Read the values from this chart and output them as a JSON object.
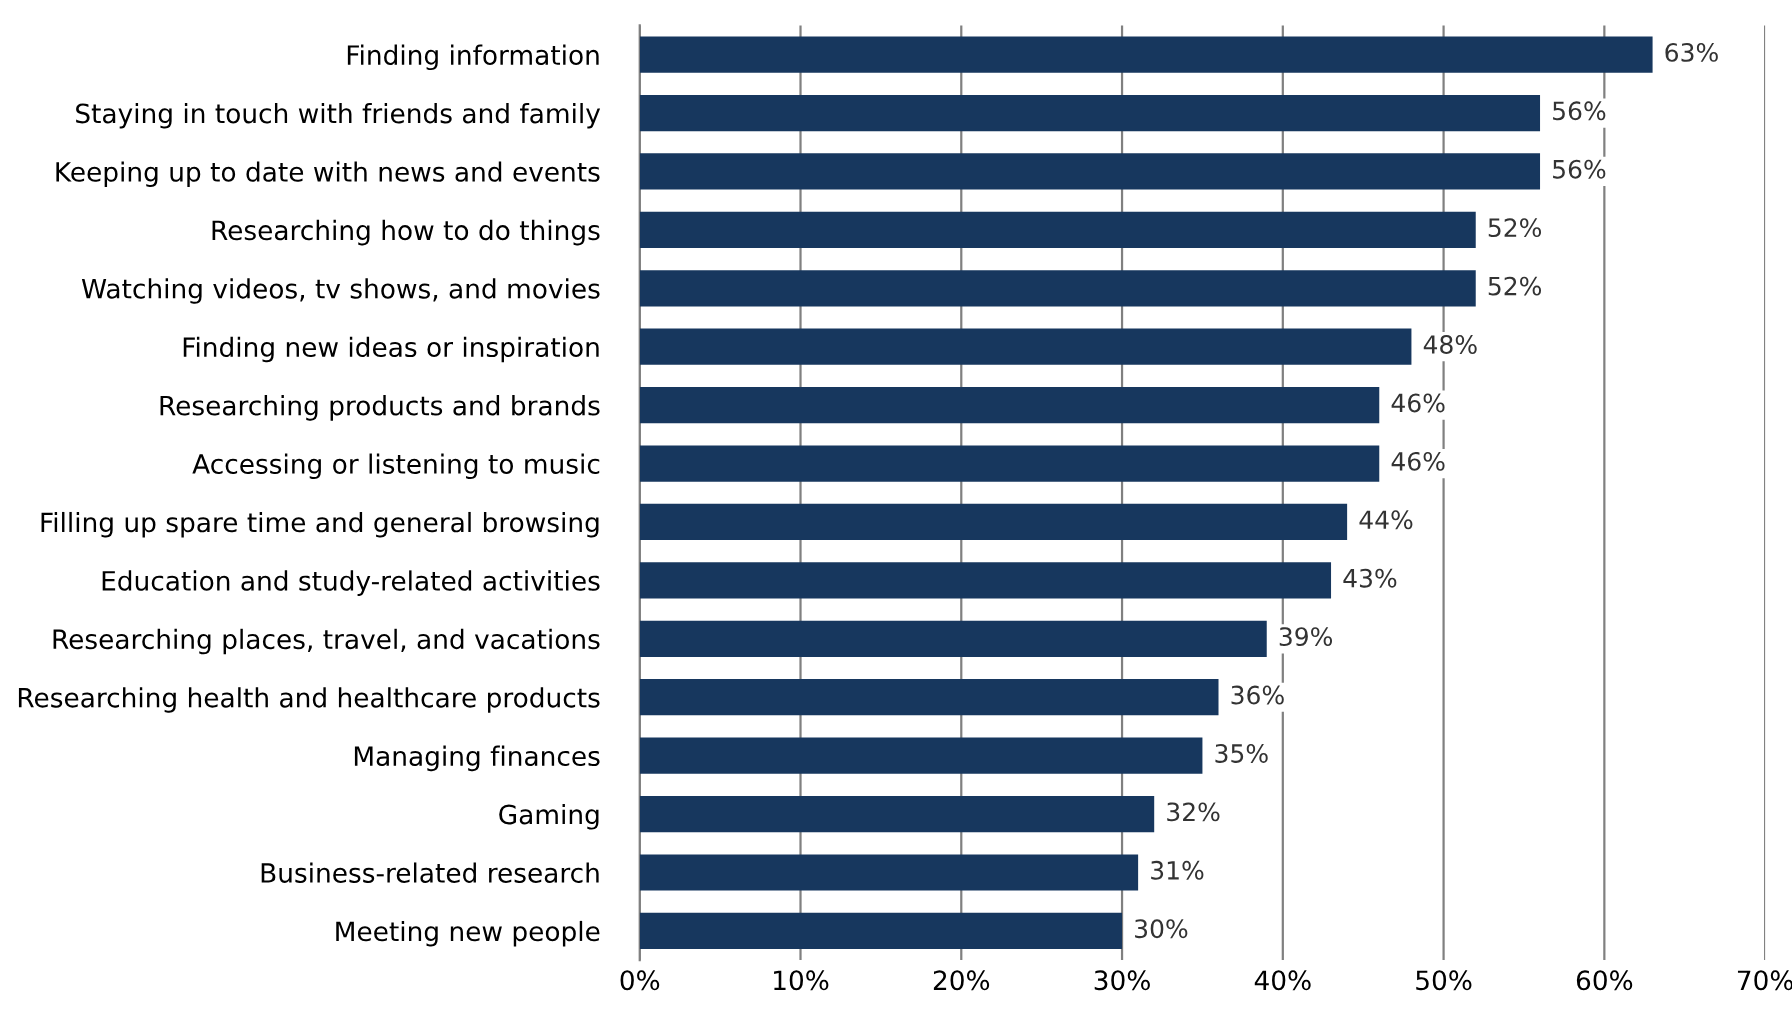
{
  "chart_data": {
    "type": "bar",
    "orientation": "horizontal",
    "categories": [
      "Finding information",
      "Staying in touch with friends and family",
      "Keeping up to date with news and events",
      "Researching how to do things",
      "Watching videos, tv shows, and movies",
      "Finding new ideas or inspiration",
      "Researching products and brands",
      "Accessing or listening to music",
      "Filling up spare time and general browsing",
      "Education and study-related activities",
      "Researching places, travel, and vacations",
      "Researching health and healthcare products",
      "Managing finances",
      "Gaming",
      "Business-related research",
      "Meeting new people"
    ],
    "values": [
      63,
      56,
      56,
      52,
      52,
      48,
      46,
      46,
      44,
      43,
      39,
      36,
      35,
      32,
      31,
      30
    ],
    "value_labels": [
      "63%",
      "56%",
      "56%",
      "52%",
      "52%",
      "48%",
      "46%",
      "46%",
      "44%",
      "43%",
      "39%",
      "36%",
      "35%",
      "32%",
      "31%",
      "30%"
    ],
    "color": "#17375e",
    "xlim": [
      0,
      70
    ],
    "xticks": [
      {
        "value": 0,
        "label": "0%"
      },
      {
        "value": 10,
        "label": "10%"
      },
      {
        "value": 20,
        "label": "20%"
      },
      {
        "value": 30,
        "label": "30%"
      },
      {
        "value": 40,
        "label": "40%"
      },
      {
        "value": 50,
        "label": "50%"
      },
      {
        "value": 60,
        "label": "60%"
      },
      {
        "value": 70,
        "label": "70%"
      }
    ],
    "grid": "x",
    "legend": false
  }
}
